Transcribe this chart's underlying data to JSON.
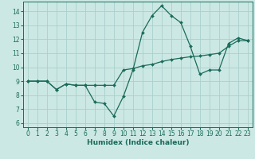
{
  "xlabel": "Humidex (Indice chaleur)",
  "bg_color": "#cce8e4",
  "line_color": "#1a6b5a",
  "grid_color": "#aacfcc",
  "xlim": [
    -0.5,
    23.5
  ],
  "ylim": [
    5.7,
    14.7
  ],
  "yticks": [
    6,
    7,
    8,
    9,
    10,
    11,
    12,
    13,
    14
  ],
  "xticks": [
    0,
    1,
    2,
    3,
    4,
    5,
    6,
    7,
    8,
    9,
    10,
    11,
    12,
    13,
    14,
    15,
    16,
    17,
    18,
    19,
    20,
    21,
    22,
    23
  ],
  "line1_x": [
    0,
    1,
    2,
    3,
    4,
    5,
    6,
    7,
    8,
    9,
    10,
    11,
    12,
    13,
    14,
    15,
    16,
    17,
    18,
    19,
    20,
    21,
    22,
    23
  ],
  "line1_y": [
    9.0,
    9.0,
    9.0,
    8.4,
    8.8,
    8.7,
    8.7,
    7.5,
    7.4,
    6.5,
    7.9,
    9.8,
    12.5,
    13.7,
    14.4,
    13.7,
    13.2,
    11.5,
    9.5,
    9.8,
    9.8,
    11.7,
    12.1,
    11.9
  ],
  "line2_x": [
    0,
    1,
    2,
    3,
    4,
    5,
    6,
    7,
    8,
    9,
    10,
    11,
    12,
    13,
    14,
    15,
    16,
    17,
    18,
    19,
    20,
    21,
    22,
    23
  ],
  "line2_y": [
    9.0,
    9.0,
    9.0,
    8.4,
    8.8,
    8.7,
    8.7,
    8.7,
    8.7,
    8.7,
    9.8,
    9.9,
    10.1,
    10.2,
    10.4,
    10.55,
    10.65,
    10.75,
    10.8,
    10.9,
    11.0,
    11.5,
    11.9,
    11.9
  ],
  "tick_fontsize": 5.5,
  "xlabel_fontsize": 6.5
}
